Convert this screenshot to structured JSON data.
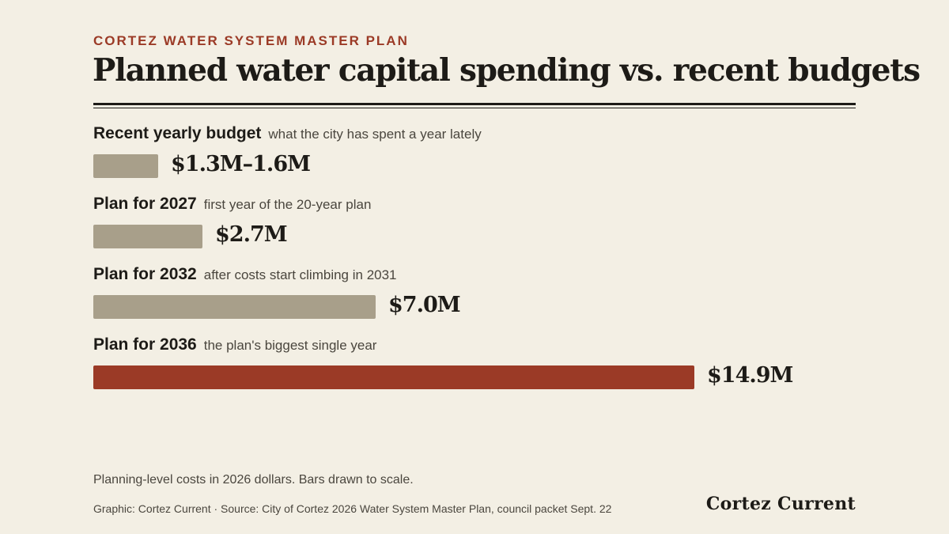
{
  "header": {
    "kicker": "CORTEZ WATER SYSTEM MASTER PLAN",
    "title": "Planned water capital spending vs. recent budgets"
  },
  "chart_data": {
    "type": "bar",
    "orientation": "horizontal",
    "unit": "$M",
    "categories": [
      "Recent yearly budget",
      "Plan for 2027",
      "Plan for 2032",
      "Plan for 2036"
    ],
    "subtitles": [
      "what the city has spent a year lately",
      "first year of the 20-year plan",
      "after costs start climbing in 2031",
      "the plan's biggest single year"
    ],
    "values": [
      1.6,
      2.7,
      7.0,
      14.9
    ],
    "range_low": [
      1.3,
      null,
      null,
      null
    ],
    "value_labels": [
      "$1.3M–1.6M",
      "$2.7M",
      "$7.0M",
      "$14.9M"
    ],
    "colors": [
      "#a89f8a",
      "#a89f8a",
      "#a89f8a",
      "#9b3a26"
    ],
    "highlight_index": 3,
    "xlim": [
      0,
      14.9
    ]
  },
  "footer": {
    "note": "Planning-level costs in 2026 dollars. Bars drawn to scale.",
    "source": "Graphic: Cortez Current · Source: City of Cortez 2026 Water System Master Plan, council packet Sept. 22",
    "brand": "Cortez Current"
  }
}
